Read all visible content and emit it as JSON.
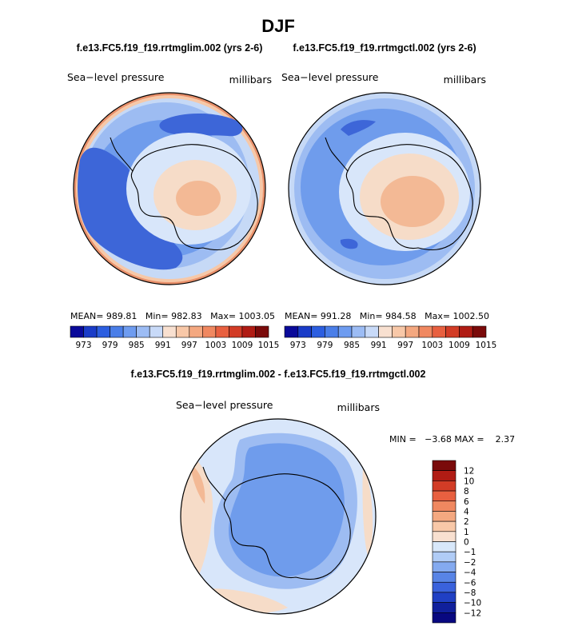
{
  "figure": {
    "season": "DJF",
    "diff_title": "f.e13.FC5.f19_f19.rrtmglim.002 - f.e13.FC5.f19_f19.rrtmgctl.002"
  },
  "chart_data": [
    {
      "type": "heatmap",
      "projection": "south-polar-stereographic",
      "case_title": "f.e13.FC5.f19_f19.rrtmglim.002 (yrs 2-6)",
      "left_label": "Sea−level pressure",
      "right_label": "millibars",
      "stats": {
        "mean": "989.81",
        "min": "982.83",
        "max": "1003.05"
      },
      "stats_text": "MEAN= 989.81   Min= 982.83   Max= 1003.05",
      "colorbar_ticks": [
        "973",
        "979",
        "985",
        "991",
        "997",
        "1003",
        "1009",
        "1015"
      ],
      "colorbar_colors": [
        "#0a0a9a",
        "#1a3cc8",
        "#2c5ee0",
        "#4a7ee8",
        "#6e9cf0",
        "#9cbcf4",
        "#c8daf8",
        "#f8e0d0",
        "#f8c8a8",
        "#f4a880",
        "#f08860",
        "#e86040",
        "#d23c26",
        "#b01c14",
        "#7a0a0a"
      ]
    },
    {
      "type": "heatmap",
      "projection": "south-polar-stereographic",
      "case_title": "f.e13.FC5.f19_f19.rrtmgctl.002 (yrs 2-6)",
      "left_label": "Sea−level pressure",
      "right_label": "millibars",
      "stats": {
        "mean": "991.28",
        "min": "984.58",
        "max": "1002.50"
      },
      "stats_text": "MEAN= 991.28   Min= 984.58   Max= 1002.50",
      "colorbar_ticks": [
        "973",
        "979",
        "985",
        "991",
        "997",
        "1003",
        "1009",
        "1015"
      ],
      "colorbar_colors": [
        "#0a0a9a",
        "#1a3cc8",
        "#2c5ee0",
        "#4a7ee8",
        "#6e9cf0",
        "#9cbcf4",
        "#c8daf8",
        "#f8e0d0",
        "#f8c8a8",
        "#f4a880",
        "#f08860",
        "#e86040",
        "#d23c26",
        "#b01c14",
        "#7a0a0a"
      ]
    },
    {
      "type": "heatmap",
      "projection": "south-polar-stereographic",
      "case_title": "f.e13.FC5.f19_f19.rrtmglim.002 - f.e13.FC5.f19_f19.rrtmgctl.002",
      "left_label": "Sea−level pressure",
      "right_label": "millibars",
      "stats": {
        "min": "-3.68",
        "max": "2.37"
      },
      "stats_text": "MIN =   −3.68 MAX =    2.37",
      "colorbar_ticks": [
        "12",
        "10",
        "8",
        "6",
        "4",
        "2",
        "1",
        "0",
        "−1",
        "−2",
        "−4",
        "−6",
        "−8",
        "−10",
        "−12"
      ],
      "colorbar_colors": [
        "#7a0a0a",
        "#b01c14",
        "#d23c26",
        "#e86040",
        "#f08860",
        "#f4a880",
        "#f8c8a8",
        "#f8e0d0",
        "#d8e8fa",
        "#b0ccf6",
        "#84aaf0",
        "#5884e6",
        "#3a62dc",
        "#2040c4",
        "#10209c",
        "#080880"
      ]
    }
  ]
}
